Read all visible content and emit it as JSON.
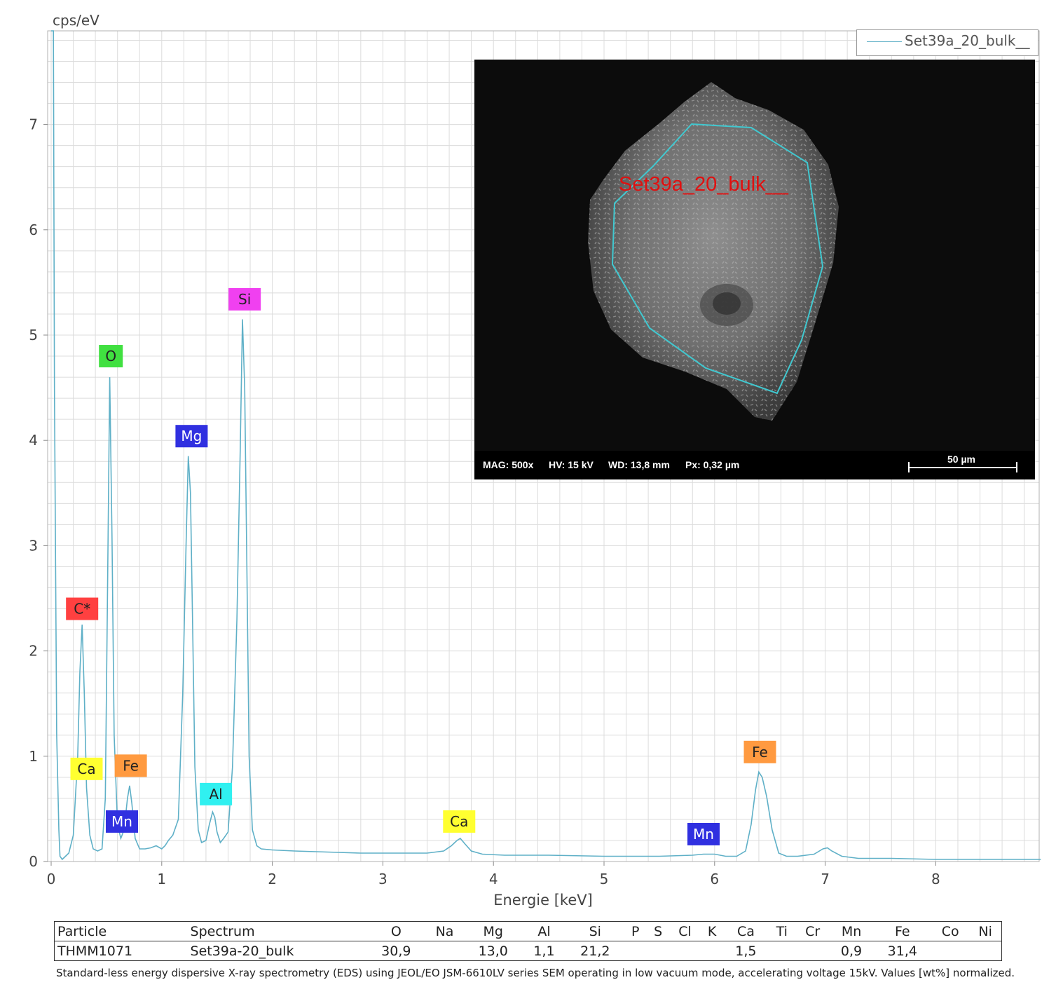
{
  "chart_data": {
    "type": "line",
    "ylabel": "cps/eV",
    "xlabel": "Energie [keV]",
    "xlim": [
      0,
      8.95
    ],
    "ylim": [
      0,
      7.9
    ],
    "x_ticks": [
      0,
      1,
      2,
      3,
      4,
      5,
      6,
      7,
      8
    ],
    "y_ticks": [
      0,
      1,
      2,
      3,
      4,
      5,
      6,
      7
    ],
    "grid": true,
    "legend_position": "top-right",
    "series": [
      {
        "name": "Set39a_20_bulk__",
        "color": "#5fb0c7",
        "x": [
          0.0,
          0.02,
          0.03,
          0.05,
          0.07,
          0.08,
          0.1,
          0.13,
          0.16,
          0.2,
          0.24,
          0.26,
          0.28,
          0.3,
          0.32,
          0.35,
          0.38,
          0.42,
          0.46,
          0.49,
          0.51,
          0.53,
          0.55,
          0.57,
          0.6,
          0.63,
          0.66,
          0.69,
          0.71,
          0.73,
          0.76,
          0.8,
          0.85,
          0.9,
          0.95,
          1.0,
          1.03,
          1.06,
          1.1,
          1.15,
          1.19,
          1.22,
          1.24,
          1.26,
          1.28,
          1.3,
          1.33,
          1.36,
          1.4,
          1.43,
          1.46,
          1.48,
          1.5,
          1.53,
          1.56,
          1.6,
          1.64,
          1.68,
          1.71,
          1.73,
          1.75,
          1.77,
          1.79,
          1.82,
          1.86,
          1.9,
          2.0,
          2.2,
          2.5,
          2.8,
          3.1,
          3.4,
          3.55,
          3.62,
          3.67,
          3.7,
          3.74,
          3.8,
          3.9,
          4.1,
          4.5,
          5.0,
          5.5,
          5.8,
          5.9,
          6.0,
          6.1,
          6.2,
          6.28,
          6.33,
          6.37,
          6.4,
          6.43,
          6.47,
          6.52,
          6.58,
          6.65,
          6.75,
          6.9,
          6.98,
          7.02,
          7.06,
          7.15,
          7.3,
          7.6,
          8.0,
          8.5,
          8.95
        ],
        "y": [
          7.9,
          7.9,
          4.5,
          1.2,
          0.3,
          0.05,
          0.02,
          0.05,
          0.08,
          0.25,
          1.0,
          1.8,
          2.25,
          1.6,
          0.7,
          0.25,
          0.12,
          0.1,
          0.12,
          0.6,
          2.6,
          4.6,
          3.1,
          1.2,
          0.35,
          0.22,
          0.3,
          0.6,
          0.72,
          0.55,
          0.22,
          0.12,
          0.12,
          0.13,
          0.15,
          0.12,
          0.15,
          0.2,
          0.25,
          0.4,
          1.6,
          3.0,
          3.85,
          3.5,
          2.2,
          0.9,
          0.3,
          0.18,
          0.2,
          0.35,
          0.47,
          0.42,
          0.28,
          0.18,
          0.22,
          0.28,
          0.9,
          2.3,
          3.9,
          5.15,
          4.5,
          2.8,
          1.0,
          0.3,
          0.15,
          0.12,
          0.11,
          0.1,
          0.09,
          0.08,
          0.08,
          0.08,
          0.1,
          0.15,
          0.2,
          0.22,
          0.17,
          0.1,
          0.07,
          0.06,
          0.06,
          0.05,
          0.05,
          0.06,
          0.07,
          0.07,
          0.05,
          0.05,
          0.1,
          0.35,
          0.68,
          0.85,
          0.8,
          0.62,
          0.3,
          0.08,
          0.05,
          0.05,
          0.07,
          0.12,
          0.13,
          0.1,
          0.05,
          0.03,
          0.03,
          0.02,
          0.02,
          0.02
        ]
      }
    ],
    "peak_labels": [
      {
        "text": "C*",
        "energy": 0.28,
        "y": 2.4,
        "color": "#ff4040",
        "text_color": "#222222"
      },
      {
        "text": "O",
        "energy": 0.54,
        "y": 4.8,
        "color": "#40e040",
        "text_color": "#222222"
      },
      {
        "text": "Mg",
        "energy": 1.27,
        "y": 4.04,
        "color": "#3030e0",
        "text_color": "#ffffff"
      },
      {
        "text": "Si",
        "energy": 1.75,
        "y": 5.34,
        "color": "#f040f0",
        "text_color": "#222222"
      },
      {
        "text": "Ca",
        "energy": 0.32,
        "y": 0.88,
        "color": "#ffff30",
        "text_color": "#222222"
      },
      {
        "text": "Fe",
        "energy": 0.72,
        "y": 0.91,
        "color": "#ff9a40",
        "text_color": "#222222"
      },
      {
        "text": "Mn",
        "energy": 0.64,
        "y": 0.38,
        "color": "#3030e0",
        "text_color": "#ffffff"
      },
      {
        "text": "Al",
        "energy": 1.49,
        "y": 0.64,
        "color": "#30f0f0",
        "text_color": "#222222"
      },
      {
        "text": "Ca",
        "energy": 3.69,
        "y": 0.38,
        "color": "#ffff30",
        "text_color": "#222222"
      },
      {
        "text": "Mn",
        "energy": 5.9,
        "y": 0.26,
        "color": "#3030e0",
        "text_color": "#ffffff"
      },
      {
        "text": "Fe",
        "energy": 6.41,
        "y": 1.04,
        "color": "#ff9a40",
        "text_color": "#222222"
      }
    ]
  },
  "legend": {
    "label": "Set39a_20_bulk__"
  },
  "sem_image": {
    "roi_label": "Set39a_20_bulk__",
    "roi_color": "#40c8d0",
    "mag": "MAG: 500x",
    "hv": "HV: 15 kV",
    "wd": "WD: 13,8 mm",
    "px": "Px: 0,32 µm",
    "scale": "50 µm"
  },
  "table": {
    "headers": [
      "Particle",
      "Spectrum",
      "O",
      "Na",
      "Mg",
      "Al",
      "Si",
      "P",
      "S",
      "Cl",
      "K",
      "Ca",
      "Ti",
      "Cr",
      "Mn",
      "Fe",
      "Co",
      "Ni"
    ],
    "row": [
      "THMM1071",
      "Set39a-20_bulk",
      "30,9",
      "",
      "13,0",
      "1,1",
      "21,2",
      "",
      "",
      "",
      "",
      "1,5",
      "",
      "",
      "0,9",
      "31,4",
      "",
      ""
    ]
  },
  "footnote": "Standard-less energy dispersive X-ray spectrometry (EDS) using JEOL/EO JSM-6610LV series SEM operating in low vacuum mode, accelerating voltage 15kV. Values [wt%] normalized."
}
